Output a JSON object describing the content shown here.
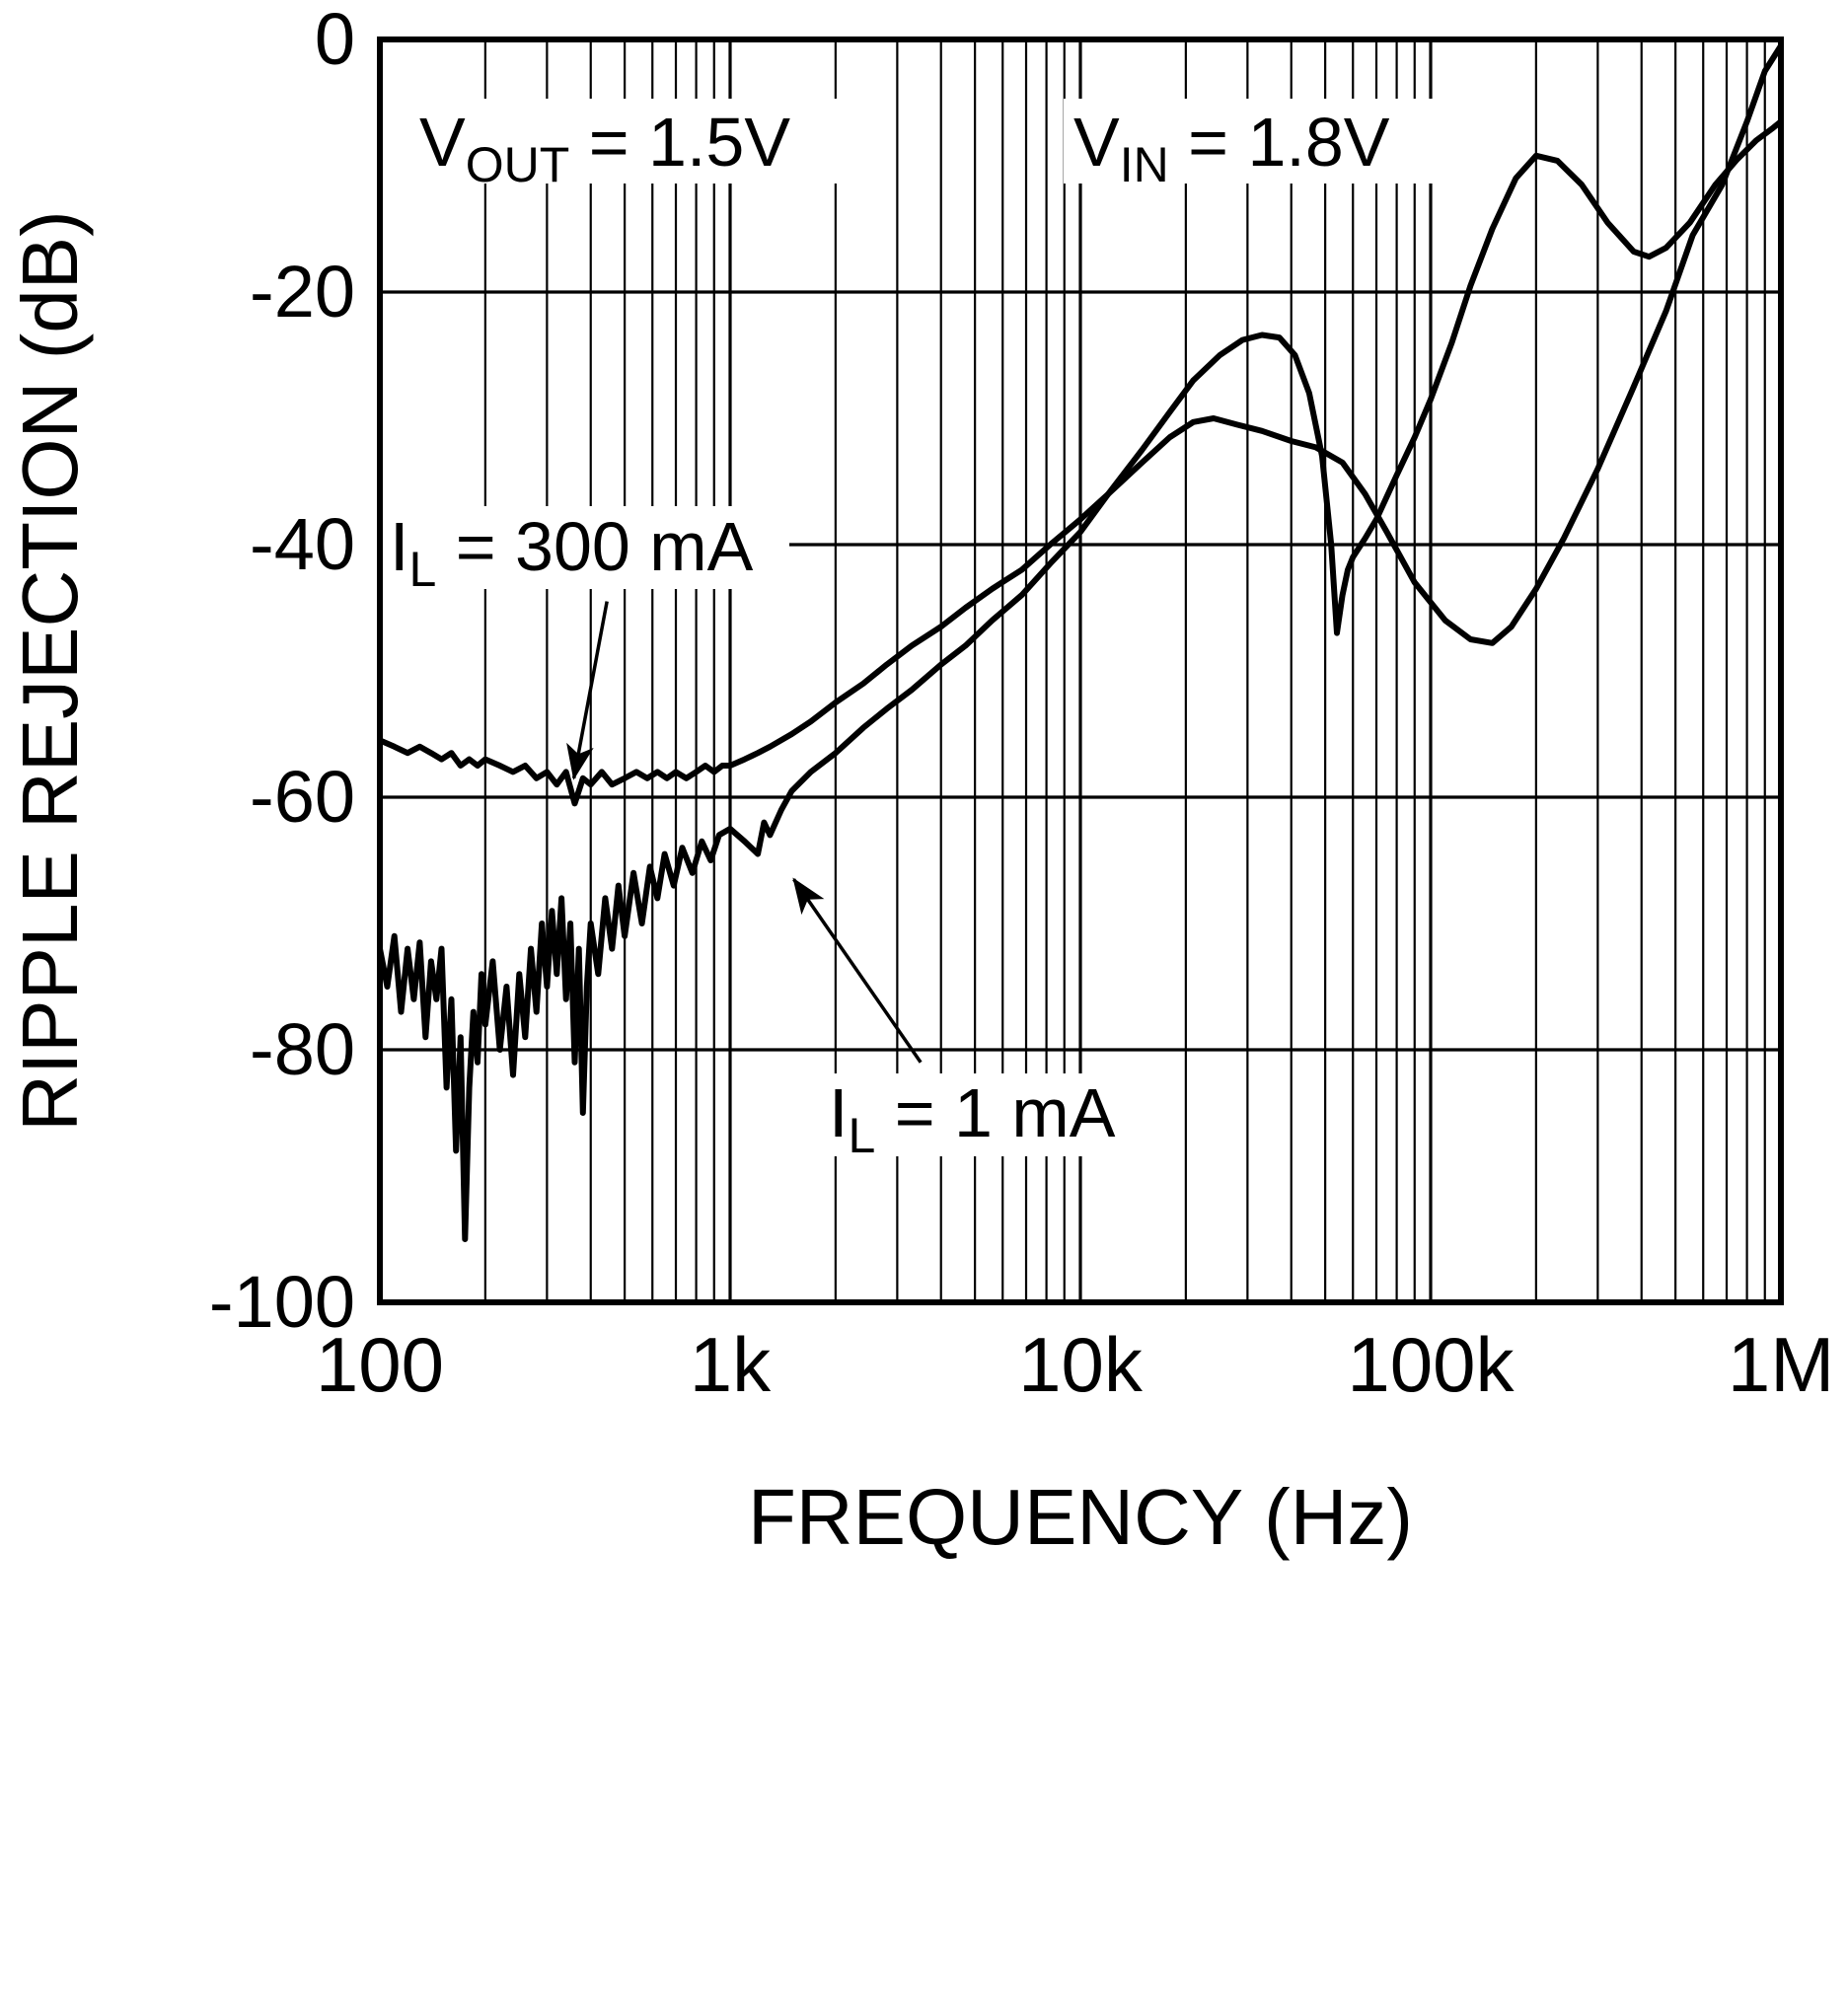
{
  "chart_data": {
    "type": "line",
    "title": "",
    "xlabel": "FREQUENCY (Hz)",
    "ylabel": "RIPPLE REJECTION (dB)",
    "x_scale": "log",
    "xlim": [
      100,
      1000000
    ],
    "ylim": [
      -100,
      0
    ],
    "grid": "vertical log decades with minor lines, horizontal lines every 20 dB",
    "legend_position": "none (in-plot labels with arrows)",
    "x_ticks": [
      {
        "value": 100,
        "label": "100"
      },
      {
        "value": 1000,
        "label": "1k"
      },
      {
        "value": 10000,
        "label": "10k"
      },
      {
        "value": 100000,
        "label": "100k"
      },
      {
        "value": 1000000,
        "label": "1M"
      }
    ],
    "y_ticks": [
      {
        "value": 0,
        "label": "0"
      },
      {
        "value": -20,
        "label": "-20"
      },
      {
        "value": -40,
        "label": "-40"
      },
      {
        "value": -60,
        "label": "-60"
      },
      {
        "value": -80,
        "label": "-80"
      },
      {
        "value": -100,
        "label": "-100"
      }
    ],
    "line_color": "#000000",
    "background": "#ffffff",
    "series": [
      {
        "name": "IL = 300 mA",
        "points": [
          [
            100,
            -55.5
          ],
          [
            110,
            -56
          ],
          [
            120,
            -56.5
          ],
          [
            130,
            -56
          ],
          [
            140,
            -56.5
          ],
          [
            150,
            -57
          ],
          [
            160,
            -56.5
          ],
          [
            170,
            -57.5
          ],
          [
            180,
            -57
          ],
          [
            190,
            -57.5
          ],
          [
            200,
            -57
          ],
          [
            220,
            -57.5
          ],
          [
            240,
            -58
          ],
          [
            260,
            -57.5
          ],
          [
            280,
            -58.5
          ],
          [
            300,
            -58
          ],
          [
            320,
            -59
          ],
          [
            340,
            -58
          ],
          [
            360,
            -60.5
          ],
          [
            380,
            -58.5
          ],
          [
            400,
            -59
          ],
          [
            430,
            -58
          ],
          [
            460,
            -59
          ],
          [
            500,
            -58.5
          ],
          [
            540,
            -58
          ],
          [
            580,
            -58.5
          ],
          [
            620,
            -58
          ],
          [
            660,
            -58.5
          ],
          [
            700,
            -58
          ],
          [
            750,
            -58.5
          ],
          [
            800,
            -58
          ],
          [
            850,
            -57.5
          ],
          [
            900,
            -58
          ],
          [
            950,
            -57.5
          ],
          [
            1000,
            -57.5
          ],
          [
            1100,
            -57
          ],
          [
            1200,
            -56.5
          ],
          [
            1300,
            -56
          ],
          [
            1500,
            -55
          ],
          [
            1700,
            -54
          ],
          [
            2000,
            -52.5
          ],
          [
            2400,
            -51
          ],
          [
            2800,
            -49.5
          ],
          [
            3300,
            -48
          ],
          [
            4000,
            -46.5
          ],
          [
            4700,
            -45
          ],
          [
            5600,
            -43.5
          ],
          [
            6800,
            -42
          ],
          [
            8200,
            -40
          ],
          [
            10000,
            -38
          ],
          [
            12000,
            -36
          ],
          [
            15000,
            -33.5
          ],
          [
            18000,
            -31.5
          ],
          [
            21000,
            -30.3
          ],
          [
            24000,
            -30
          ],
          [
            28000,
            -30.5
          ],
          [
            33000,
            -31
          ],
          [
            40000,
            -31.8
          ],
          [
            47000,
            -32.3
          ],
          [
            56000,
            -33.5
          ],
          [
            65000,
            -36
          ],
          [
            75000,
            -39
          ],
          [
            90000,
            -43
          ],
          [
            110000,
            -46
          ],
          [
            130000,
            -47.5
          ],
          [
            150000,
            -47.8
          ],
          [
            170000,
            -46.5
          ],
          [
            200000,
            -43.5
          ],
          [
            240000,
            -39.5
          ],
          [
            300000,
            -34
          ],
          [
            380000,
            -27.5
          ],
          [
            470000,
            -21.5
          ],
          [
            560000,
            -15.5
          ],
          [
            680000,
            -11.5
          ],
          [
            800000,
            -6.5
          ],
          [
            900000,
            -2.5
          ],
          [
            1000000,
            -0.5
          ]
        ]
      },
      {
        "name": "IL = 1 mA",
        "points": [
          [
            100,
            -72
          ],
          [
            105,
            -75
          ],
          [
            110,
            -71
          ],
          [
            115,
            -77
          ],
          [
            120,
            -72
          ],
          [
            125,
            -76
          ],
          [
            130,
            -71.5
          ],
          [
            135,
            -79
          ],
          [
            140,
            -73
          ],
          [
            145,
            -76
          ],
          [
            150,
            -72
          ],
          [
            155,
            -83
          ],
          [
            160,
            -76
          ],
          [
            165,
            -88
          ],
          [
            170,
            -79
          ],
          [
            175,
            -95
          ],
          [
            180,
            -83
          ],
          [
            185,
            -77
          ],
          [
            190,
            -81
          ],
          [
            195,
            -74
          ],
          [
            200,
            -78
          ],
          [
            210,
            -73
          ],
          [
            220,
            -80
          ],
          [
            230,
            -75
          ],
          [
            240,
            -82
          ],
          [
            250,
            -74
          ],
          [
            260,
            -79
          ],
          [
            270,
            -72
          ],
          [
            280,
            -77
          ],
          [
            290,
            -70
          ],
          [
            300,
            -75
          ],
          [
            310,
            -69
          ],
          [
            320,
            -74
          ],
          [
            330,
            -68
          ],
          [
            340,
            -76
          ],
          [
            350,
            -70
          ],
          [
            360,
            -81
          ],
          [
            370,
            -72
          ],
          [
            380,
            -85
          ],
          [
            390,
            -75
          ],
          [
            400,
            -70
          ],
          [
            420,
            -74
          ],
          [
            440,
            -68
          ],
          [
            460,
            -72
          ],
          [
            480,
            -67
          ],
          [
            500,
            -71
          ],
          [
            530,
            -66
          ],
          [
            560,
            -70
          ],
          [
            590,
            -65.5
          ],
          [
            620,
            -68
          ],
          [
            650,
            -64.5
          ],
          [
            690,
            -67
          ],
          [
            730,
            -64
          ],
          [
            780,
            -66
          ],
          [
            830,
            -63.5
          ],
          [
            880,
            -65
          ],
          [
            930,
            -63
          ],
          [
            1000,
            -62.5
          ],
          [
            1100,
            -63.5
          ],
          [
            1200,
            -64.5
          ],
          [
            1250,
            -62
          ],
          [
            1300,
            -63
          ],
          [
            1400,
            -61
          ],
          [
            1500,
            -59.5
          ],
          [
            1700,
            -58
          ],
          [
            2000,
            -56.5
          ],
          [
            2400,
            -54.5
          ],
          [
            2800,
            -53
          ],
          [
            3300,
            -51.5
          ],
          [
            4000,
            -49.5
          ],
          [
            4700,
            -48
          ],
          [
            5600,
            -46
          ],
          [
            6800,
            -44
          ],
          [
            8200,
            -41.5
          ],
          [
            10000,
            -39
          ],
          [
            12000,
            -36
          ],
          [
            15000,
            -32.5
          ],
          [
            18000,
            -29.5
          ],
          [
            21000,
            -27
          ],
          [
            25000,
            -25
          ],
          [
            29000,
            -23.8
          ],
          [
            33000,
            -23.4
          ],
          [
            37000,
            -23.6
          ],
          [
            41000,
            -25
          ],
          [
            45000,
            -28
          ],
          [
            49000,
            -33
          ],
          [
            52000,
            -40
          ],
          [
            54000,
            -47
          ],
          [
            56000,
            -44
          ],
          [
            58000,
            -42
          ],
          [
            60000,
            -41
          ],
          [
            65000,
            -39.5
          ],
          [
            70000,
            -38
          ],
          [
            80000,
            -34.5
          ],
          [
            90000,
            -31.5
          ],
          [
            100000,
            -28.5
          ],
          [
            115000,
            -24
          ],
          [
            130000,
            -19.5
          ],
          [
            150000,
            -15
          ],
          [
            175000,
            -11
          ],
          [
            200000,
            -9.2
          ],
          [
            230000,
            -9.6
          ],
          [
            270000,
            -11.5
          ],
          [
            320000,
            -14.5
          ],
          [
            380000,
            -16.8
          ],
          [
            420000,
            -17.2
          ],
          [
            470000,
            -16.5
          ],
          [
            550000,
            -14.5
          ],
          [
            650000,
            -11.5
          ],
          [
            750000,
            -9.5
          ],
          [
            850000,
            -8
          ],
          [
            950000,
            -7
          ],
          [
            1000000,
            -6.5
          ]
        ]
      }
    ],
    "annotations": {
      "vout": {
        "pre": "V",
        "sub": "OUT",
        "post": " = 1.5V"
      },
      "vin": {
        "pre": "V",
        "sub": "IN",
        "post": " = 1.8V"
      },
      "il300": {
        "pre": "I",
        "sub": "L",
        "post": " = 300 mA",
        "arrow": {
          "from": [
            445,
            -44.5
          ],
          "to": [
            358,
            -58.5
          ]
        }
      },
      "il1": {
        "pre": "I",
        "sub": "L",
        "post": " = 1 mA",
        "arrow": {
          "from": [
            3500,
            -81
          ],
          "to": [
            1520,
            -66.5
          ]
        }
      }
    }
  }
}
